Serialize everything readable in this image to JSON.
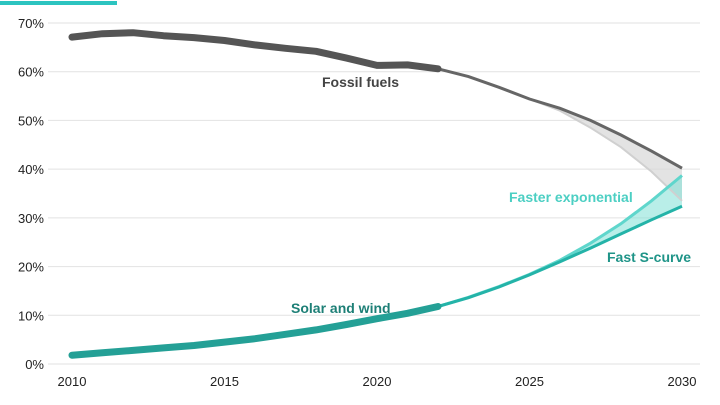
{
  "chart_data": {
    "type": "line",
    "title": "",
    "xlabel": "",
    "ylabel": "",
    "xlim": [
      2010,
      2030
    ],
    "ylim": [
      0,
      70
    ],
    "grid": true,
    "x_ticks": [
      "2010",
      "2015",
      "2020",
      "2025",
      "2030"
    ],
    "y_ticks": [
      "0%",
      "10%",
      "20%",
      "30%",
      "40%",
      "50%",
      "60%",
      "70%"
    ],
    "series": [
      {
        "name": "Fossil fuels",
        "color": "#555555",
        "x": [
          2010,
          2011,
          2012,
          2013,
          2014,
          2015,
          2016,
          2017,
          2018,
          2019,
          2020,
          2021,
          2022
        ],
        "values": [
          67.1,
          67.8,
          68.0,
          67.4,
          67.0,
          66.4,
          65.5,
          64.8,
          64.2,
          62.8,
          61.3,
          61.4,
          60.6
        ]
      },
      {
        "name": "Solar and wind",
        "color": "#24a096",
        "x": [
          2010,
          2011,
          2012,
          2013,
          2014,
          2015,
          2016,
          2017,
          2018,
          2019,
          2020,
          2021,
          2022
        ],
        "values": [
          1.8,
          2.3,
          2.8,
          3.3,
          3.8,
          4.5,
          5.2,
          6.1,
          7.0,
          8.1,
          9.3,
          10.4,
          11.8
        ]
      }
    ],
    "projections": [
      {
        "name": "Fast S-curve",
        "color": "#24b3a8",
        "x": [
          2022,
          2023,
          2024,
          2025,
          2026,
          2027,
          2028,
          2029,
          2030
        ],
        "solar": [
          11.8,
          13.6,
          15.8,
          18.3,
          21.0,
          23.8,
          26.7,
          29.6,
          32.4
        ],
        "fossil": [
          60.6,
          59.0,
          56.8,
          54.4,
          52.5,
          50.0,
          47.0,
          43.7,
          40.2
        ]
      },
      {
        "name": "Faster exponential",
        "color": "#5fd6cc",
        "x": [
          2022,
          2023,
          2024,
          2025,
          2026,
          2027,
          2028,
          2029,
          2030
        ],
        "solar": [
          11.8,
          13.7,
          15.9,
          18.4,
          21.3,
          24.8,
          28.8,
          33.5,
          38.7
        ],
        "fossil": [
          60.6,
          59.0,
          56.8,
          54.4,
          52.0,
          48.5,
          44.5,
          39.5,
          33.5
        ]
      }
    ],
    "labels": {
      "fossil": "Fossil fuels",
      "solar": "Solar and wind",
      "exponential": "Faster exponential",
      "scurve": "Fast S-curve"
    }
  }
}
